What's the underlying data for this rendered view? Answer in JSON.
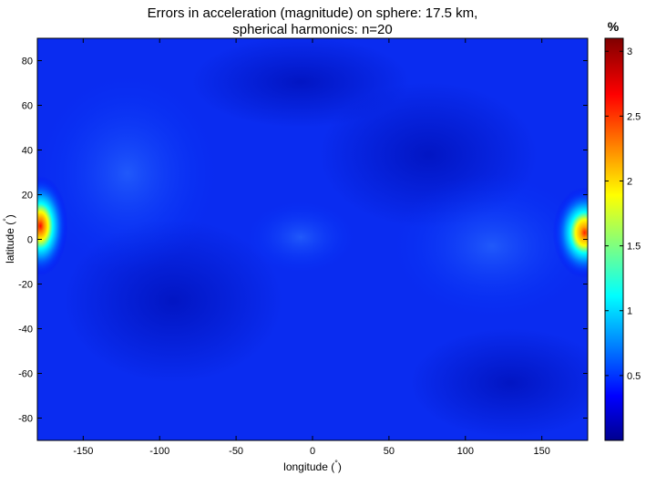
{
  "chart_data": {
    "type": "heatmap",
    "title_lines": [
      "Errors in acceleration (magnitude) on sphere: 17.5 km,",
      "spherical harmonics: n=20"
    ],
    "xlabel_text": "longitude (",
    "ylabel_text": "latitude (",
    "unit_symbol": "°",
    "close_paren": ")",
    "colorbar_label": "%",
    "xlim": [
      -180,
      180
    ],
    "ylim": [
      -90,
      90
    ],
    "xticks": [
      -150,
      -100,
      -50,
      0,
      50,
      100,
      150
    ],
    "yticks": [
      80,
      60,
      40,
      20,
      0,
      -20,
      -40,
      -60,
      -80
    ],
    "colorbar_range": [
      0,
      3.1
    ],
    "colorbar_ticks": [
      0.5,
      1,
      1.5,
      2,
      2.5,
      3
    ],
    "colormap": "jet",
    "background_value": 0.15,
    "peaks": [
      {
        "lon": -178,
        "lat": 6,
        "value": 3.1
      },
      {
        "lon": 178,
        "lat": 3,
        "value": 3.0
      }
    ],
    "grid": false
  }
}
